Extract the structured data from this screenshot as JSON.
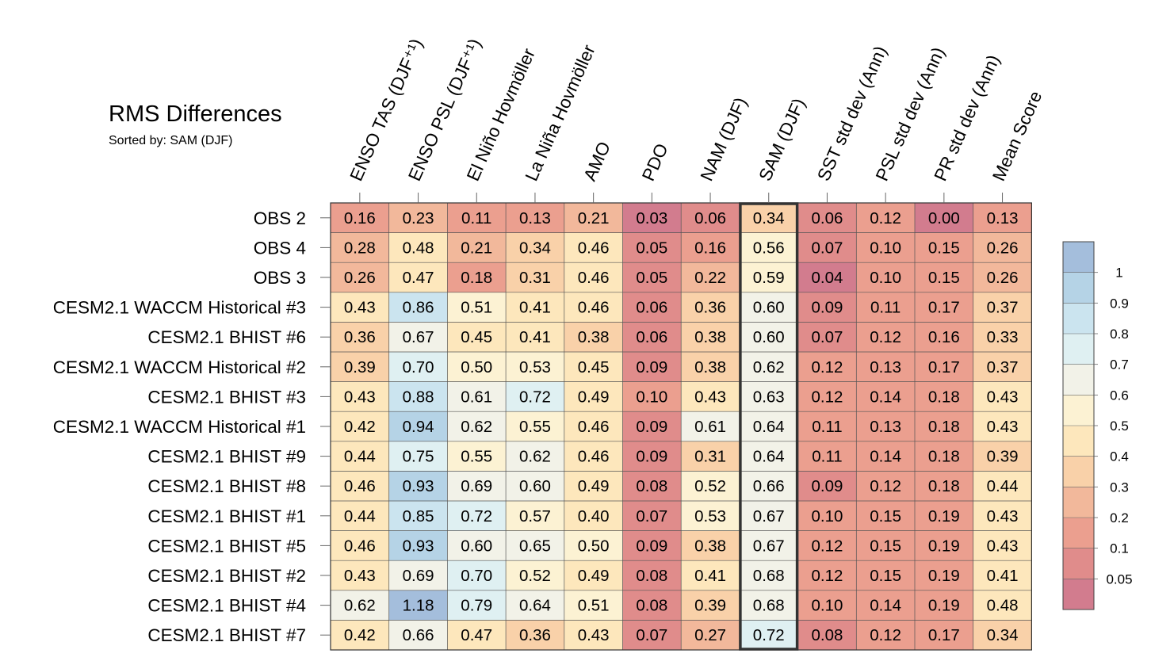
{
  "title": "RMS Differences",
  "subtitle": "Sorted by: SAM (DJF)",
  "chart_data": {
    "type": "heatmap",
    "columns": [
      "ENSO TAS (DJF⁺¹)",
      "ENSO PSL (DJF⁺¹)",
      "El Niño Hovmöller",
      "La Niña Hovmöller",
      "AMO",
      "PDO",
      "NAM (DJF)",
      "SAM (DJF)",
      "SST std dev (Ann)",
      "PSL std dev (Ann)",
      "PR std dev (Ann)",
      "Mean Score"
    ],
    "rows": [
      "OBS 2",
      "OBS 4",
      "OBS 3",
      "CESM2.1 WACCM Historical #3",
      "CESM2.1 BHIST #6",
      "CESM2.1 WACCM Historical #2",
      "CESM2.1 BHIST #3",
      "CESM2.1 WACCM Historical #1",
      "CESM2.1 BHIST #9",
      "CESM2.1 BHIST #8",
      "CESM2.1 BHIST #1",
      "CESM2.1 BHIST #5",
      "CESM2.1 BHIST #2",
      "CESM2.1 BHIST #4",
      "CESM2.1 BHIST #7"
    ],
    "values": [
      [
        "0.16",
        "0.23",
        "0.11",
        "0.13",
        "0.21",
        "0.03",
        "0.06",
        "0.34",
        "0.06",
        "0.12",
        "0.00",
        "0.13"
      ],
      [
        "0.28",
        "0.48",
        "0.21",
        "0.34",
        "0.46",
        "0.05",
        "0.16",
        "0.56",
        "0.07",
        "0.10",
        "0.15",
        "0.26"
      ],
      [
        "0.26",
        "0.47",
        "0.18",
        "0.31",
        "0.46",
        "0.05",
        "0.22",
        "0.59",
        "0.04",
        "0.10",
        "0.15",
        "0.26"
      ],
      [
        "0.43",
        "0.86",
        "0.51",
        "0.41",
        "0.46",
        "0.06",
        "0.36",
        "0.60",
        "0.09",
        "0.11",
        "0.17",
        "0.37"
      ],
      [
        "0.36",
        "0.67",
        "0.45",
        "0.41",
        "0.38",
        "0.06",
        "0.38",
        "0.60",
        "0.07",
        "0.12",
        "0.16",
        "0.33"
      ],
      [
        "0.39",
        "0.70",
        "0.50",
        "0.53",
        "0.45",
        "0.09",
        "0.38",
        "0.62",
        "0.12",
        "0.13",
        "0.17",
        "0.37"
      ],
      [
        "0.43",
        "0.88",
        "0.61",
        "0.72",
        "0.49",
        "0.10",
        "0.43",
        "0.63",
        "0.12",
        "0.14",
        "0.18",
        "0.43"
      ],
      [
        "0.42",
        "0.94",
        "0.62",
        "0.55",
        "0.46",
        "0.09",
        "0.61",
        "0.64",
        "0.11",
        "0.13",
        "0.18",
        "0.43"
      ],
      [
        "0.44",
        "0.75",
        "0.55",
        "0.62",
        "0.46",
        "0.09",
        "0.31",
        "0.64",
        "0.11",
        "0.14",
        "0.18",
        "0.39"
      ],
      [
        "0.46",
        "0.93",
        "0.69",
        "0.60",
        "0.49",
        "0.08",
        "0.52",
        "0.66",
        "0.09",
        "0.12",
        "0.18",
        "0.44"
      ],
      [
        "0.44",
        "0.85",
        "0.72",
        "0.57",
        "0.40",
        "0.07",
        "0.53",
        "0.67",
        "0.10",
        "0.15",
        "0.19",
        "0.43"
      ],
      [
        "0.46",
        "0.93",
        "0.60",
        "0.65",
        "0.50",
        "0.09",
        "0.38",
        "0.67",
        "0.12",
        "0.15",
        "0.19",
        "0.43"
      ],
      [
        "0.43",
        "0.69",
        "0.70",
        "0.52",
        "0.49",
        "0.08",
        "0.41",
        "0.68",
        "0.12",
        "0.15",
        "0.19",
        "0.41"
      ],
      [
        "0.62",
        "1.18",
        "0.79",
        "0.64",
        "0.51",
        "0.08",
        "0.39",
        "0.68",
        "0.10",
        "0.14",
        "0.19",
        "0.48"
      ],
      [
        "0.42",
        "0.66",
        "0.47",
        "0.36",
        "0.43",
        "0.07",
        "0.27",
        "0.72",
        "0.08",
        "0.12",
        "0.17",
        "0.34"
      ]
    ],
    "highlight_column": "SAM (DJF)",
    "colorbar": {
      "levels": [
        0.05,
        0.1,
        0.2,
        0.3,
        0.4,
        0.5,
        0.6,
        0.7,
        0.8,
        0.9,
        1
      ],
      "labels": [
        "0.05",
        "0.1",
        "0.2",
        "0.3",
        "0.4",
        "0.5",
        "0.6",
        "0.7",
        "0.8",
        "0.9",
        "1"
      ],
      "colors": [
        "#d27c8e",
        "#e08c8b",
        "#eb9f8f",
        "#f2b89b",
        "#f9d1a9",
        "#fde7bc",
        "#fcf2d3",
        "#f2f2e8",
        "#dff0f2",
        "#cbe4ef",
        "#b5d3e6",
        "#a4bedc"
      ]
    }
  }
}
